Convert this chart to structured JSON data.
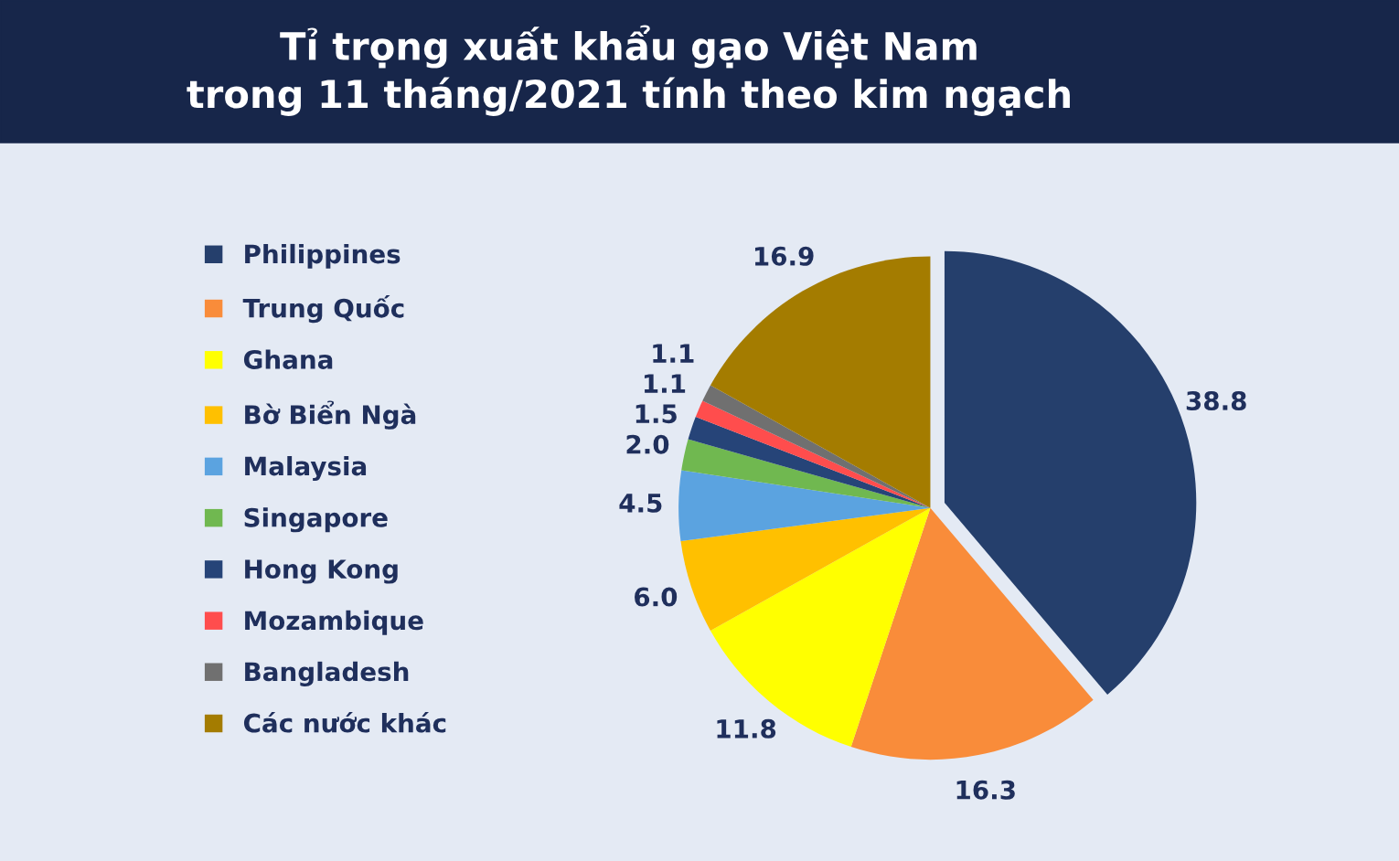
{
  "chart_data": {
    "type": "pie",
    "title": "Tỉ trọng xuất khẩu gạo Việt Nam\ntrong 11 tháng/2021 tính theo kim ngạch",
    "categories": [
      "Philippines",
      "Trung Quốc",
      "Ghana",
      "Bờ Biển Ngà",
      "Malaysia",
      "Singapore",
      "Hong Kong",
      "Mozambique",
      "Bangladesh",
      "Các nước khác"
    ],
    "values": [
      38.8,
      16.3,
      11.8,
      6.0,
      4.5,
      2.0,
      1.5,
      1.1,
      1.1,
      16.9
    ],
    "value_labels": [
      "38.8",
      "16.3",
      "11.8",
      "6.0",
      "4.5",
      "2.0",
      "1.5",
      "1.1",
      "1.1",
      "16.9"
    ],
    "colors": [
      "#253f6c",
      "#f98c3a",
      "#ffff00",
      "#ffc000",
      "#5ba3e0",
      "#70b850",
      "#264478",
      "#ff4d4d",
      "#707070",
      "#a47c00"
    ],
    "legend": "left"
  }
}
